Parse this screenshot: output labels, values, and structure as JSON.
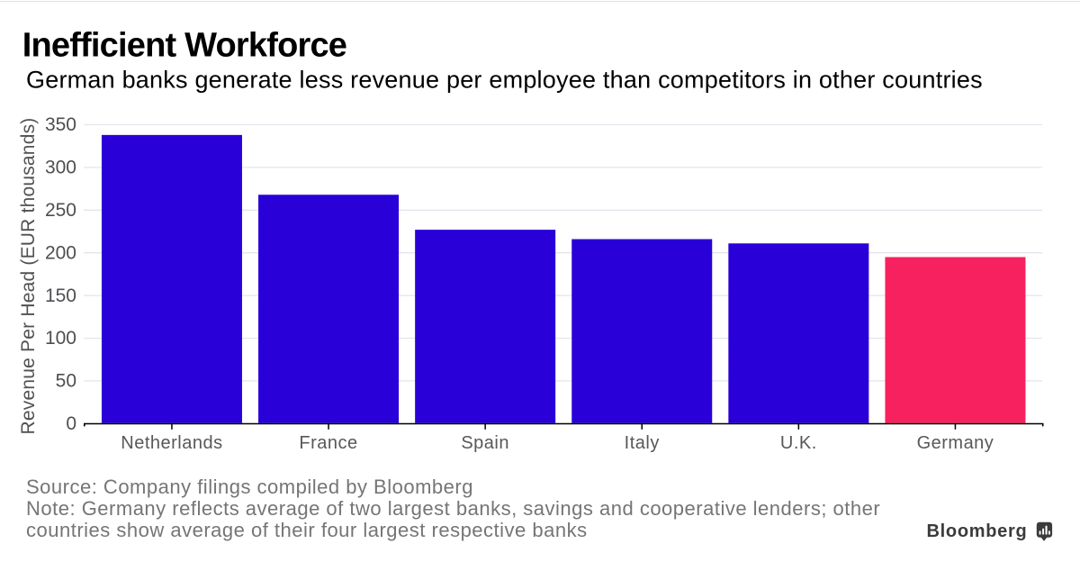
{
  "page": {
    "background": "#ffffff",
    "top_rule_color": "#e2e2e2"
  },
  "header": {
    "title": "Inefficient Workforce",
    "subtitle": "German banks generate less revenue per employee than competitors in other countries"
  },
  "chart_data": {
    "type": "bar",
    "categories": [
      "Netherlands",
      "France",
      "Spain",
      "Italy",
      "U.K.",
      "Germany"
    ],
    "values": [
      338,
      268,
      227,
      216,
      211,
      195
    ],
    "title": "Inefficient Workforce",
    "subtitle": "German banks generate less revenue per employee than competitors in other countries",
    "xlabel": "",
    "ylabel": "Revenue Per Head (EUR thousands)",
    "ylim": [
      0,
      350
    ],
    "yticks": [
      0,
      50,
      100,
      150,
      200,
      250,
      300,
      350
    ],
    "grid": "horizontal-only",
    "legend": "none",
    "bar_color": "#2900d7",
    "highlight_category": "Germany",
    "highlight_color": "#f8215f",
    "gridline_color": "#e3e5ec",
    "axis_line_color": "#000000"
  },
  "footer": {
    "source": "Source: Company filings compiled by Bloomberg",
    "note": "Note: Germany reflects average of two largest banks, savings and cooperative lenders; other countries show average of their four largest respective banks",
    "note_lines": [
      "Note: Germany reflects average of two largest banks, savings and cooperative lenders; other",
      "countries show average of their four largest respective banks"
    ],
    "brand": "Bloomberg"
  }
}
